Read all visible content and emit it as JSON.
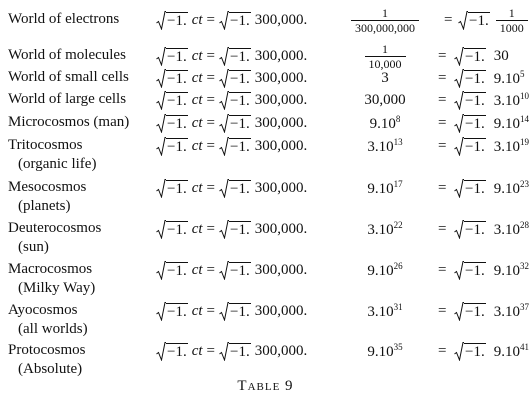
{
  "table": {
    "rows": [
      {
        "name": "World of electrons",
        "formula": {
          "r1": "−1.",
          "ct": "ct",
          "eq": "=",
          "r2": "−1.",
          "c": "300,000."
        },
        "factor": {
          "num": "1",
          "den": "300,000,000"
        },
        "eq": "=",
        "result": {
          "root": "−1.",
          "value": {
            "num": "1",
            "den": "1000"
          }
        }
      },
      {
        "name": "World of molecules",
        "formula": {
          "r1": "−1.",
          "ct": "ct",
          "eq": "=",
          "r2": "−1.",
          "c": "300,000."
        },
        "factor": {
          "num": "1",
          "den": "10,000"
        },
        "eq": "=",
        "result": {
          "root": "−1.",
          "value": "30"
        }
      },
      {
        "name": "World of small cells",
        "formula": {
          "r1": "−1.",
          "ct": "ct",
          "eq": "=",
          "r2": "−1.",
          "c": "300,000."
        },
        "factor": "3",
        "eq": "=",
        "result": {
          "root": "−1.",
          "value": {
            "base": "9.10",
            "exp": "5"
          }
        }
      },
      {
        "name": "World of large cells",
        "formula": {
          "r1": "−1.",
          "ct": "ct",
          "eq": "=",
          "r2": "−1.",
          "c": "300,000."
        },
        "factor": "30,000",
        "eq": "=",
        "result": {
          "root": "−1.",
          "value": {
            "base": "3.10",
            "exp": "10"
          }
        }
      },
      {
        "name": "Microcosmos (man)",
        "formula": {
          "r1": "−1.",
          "ct": "ct",
          "eq": "=",
          "r2": "−1.",
          "c": "300,000."
        },
        "factor": {
          "base": "9.10",
          "exp": "8"
        },
        "eq": "=",
        "result": {
          "root": "−1.",
          "value": {
            "base": "9.10",
            "exp": "14"
          }
        }
      },
      {
        "name": "Tritocosmos",
        "sub": "(organic life)",
        "formula": {
          "r1": "−1.",
          "ct": "ct",
          "eq": "=",
          "r2": "−1.",
          "c": "300,000."
        },
        "factor": {
          "base": "3.10",
          "exp": "13"
        },
        "eq": "=",
        "result": {
          "root": "−1.",
          "value": {
            "base": "3.10",
            "exp": "19"
          }
        }
      },
      {
        "name": "Mesocosmos",
        "sub": "(planets)",
        "formula": {
          "r1": "−1.",
          "ct": "ct",
          "eq": "=",
          "r2": "−1.",
          "c": "300,000."
        },
        "factor": {
          "base": "9.10",
          "exp": "17"
        },
        "eq": "=",
        "result": {
          "root": "−1.",
          "value": {
            "base": "9.10",
            "exp": "23"
          }
        }
      },
      {
        "name": "Deuterocosmos",
        "sub": "(sun)",
        "formula": {
          "r1": "−1.",
          "ct": "ct",
          "eq": "=",
          "r2": "−1.",
          "c": "300,000."
        },
        "factor": {
          "base": "3.10",
          "exp": "22"
        },
        "eq": "=",
        "result": {
          "root": "−1.",
          "value": {
            "base": "3.10",
            "exp": "28"
          }
        }
      },
      {
        "name": "Macrocosmos",
        "sub": "(Milky Way)",
        "formula": {
          "r1": "−1.",
          "ct": "ct",
          "eq": "=",
          "r2": "−1.",
          "c": "300,000."
        },
        "factor": {
          "base": "9.10",
          "exp": "26"
        },
        "eq": "=",
        "result": {
          "root": "−1.",
          "value": {
            "base": "9.10",
            "exp": "32"
          }
        }
      },
      {
        "name": "Ayocosmos",
        "sub": "(all worlds)",
        "formula": {
          "r1": "−1.",
          "ct": "ct",
          "eq": "=",
          "r2": "−1.",
          "c": "300,000."
        },
        "factor": {
          "base": "3.10",
          "exp": "31"
        },
        "eq": "=",
        "result": {
          "root": "−1.",
          "value": {
            "base": "3.10",
            "exp": "37"
          }
        }
      },
      {
        "name": "Protocosmos",
        "sub": "(Absolute)",
        "formula": {
          "r1": "−1.",
          "ct": "ct",
          "eq": "=",
          "r2": "−1.",
          "c": "300,000."
        },
        "factor": {
          "base": "9.10",
          "exp": "35"
        },
        "eq": "=",
        "result": {
          "root": "−1.",
          "value": {
            "base": "9.10",
            "exp": "41"
          }
        }
      }
    ],
    "caption": "Table 9"
  }
}
